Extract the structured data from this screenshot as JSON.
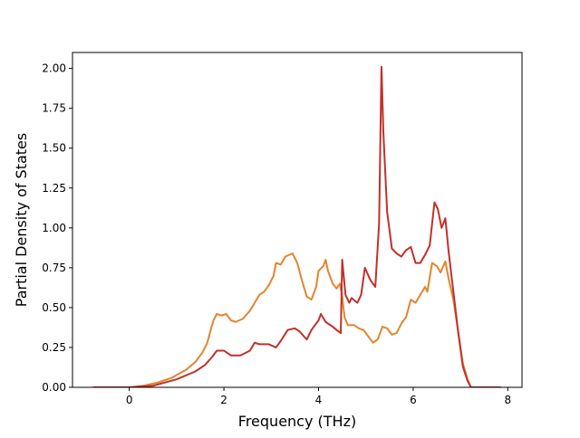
{
  "chart_data": {
    "type": "line",
    "title": "",
    "xlabel": "Frequency (THz)",
    "ylabel": "Partial Density of States",
    "xlim": [
      -1.2,
      8.3
    ],
    "ylim": [
      0.0,
      2.1
    ],
    "x_ticks": [
      0,
      2,
      4,
      6,
      8
    ],
    "x_tick_labels": [
      "0",
      "2",
      "4",
      "6",
      "8"
    ],
    "y_ticks": [
      0.0,
      0.25,
      0.5,
      0.75,
      1.0,
      1.25,
      1.5,
      1.75,
      2.0
    ],
    "y_tick_labels": [
      "0.00",
      "0.25",
      "0.50",
      "0.75",
      "1.00",
      "1.25",
      "1.50",
      "1.75",
      "2.00"
    ],
    "grid": false,
    "legend": "none",
    "series": [
      {
        "color": "#e2852f",
        "points": [
          [
            -0.75,
            0.0
          ],
          [
            0.0,
            0.0
          ],
          [
            0.3,
            0.01
          ],
          [
            0.6,
            0.03
          ],
          [
            0.9,
            0.06
          ],
          [
            1.2,
            0.11
          ],
          [
            1.4,
            0.16
          ],
          [
            1.55,
            0.22
          ],
          [
            1.65,
            0.28
          ],
          [
            1.72,
            0.36
          ],
          [
            1.78,
            0.42
          ],
          [
            1.85,
            0.46
          ],
          [
            1.95,
            0.45
          ],
          [
            2.05,
            0.46
          ],
          [
            2.15,
            0.42
          ],
          [
            2.25,
            0.41
          ],
          [
            2.4,
            0.43
          ],
          [
            2.55,
            0.48
          ],
          [
            2.65,
            0.53
          ],
          [
            2.75,
            0.58
          ],
          [
            2.85,
            0.6
          ],
          [
            2.95,
            0.64
          ],
          [
            3.05,
            0.7
          ],
          [
            3.1,
            0.78
          ],
          [
            3.2,
            0.77
          ],
          [
            3.3,
            0.82
          ],
          [
            3.45,
            0.84
          ],
          [
            3.55,
            0.78
          ],
          [
            3.65,
            0.67
          ],
          [
            3.75,
            0.57
          ],
          [
            3.85,
            0.55
          ],
          [
            3.95,
            0.63
          ],
          [
            4.0,
            0.73
          ],
          [
            4.1,
            0.76
          ],
          [
            4.15,
            0.8
          ],
          [
            4.2,
            0.73
          ],
          [
            4.3,
            0.65
          ],
          [
            4.38,
            0.62
          ],
          [
            4.45,
            0.65
          ],
          [
            4.5,
            0.57
          ],
          [
            4.55,
            0.44
          ],
          [
            4.62,
            0.39
          ],
          [
            4.75,
            0.39
          ],
          [
            4.85,
            0.37
          ],
          [
            4.95,
            0.36
          ],
          [
            5.05,
            0.32
          ],
          [
            5.15,
            0.28
          ],
          [
            5.25,
            0.3
          ],
          [
            5.35,
            0.38
          ],
          [
            5.45,
            0.37
          ],
          [
            5.55,
            0.33
          ],
          [
            5.65,
            0.34
          ],
          [
            5.75,
            0.4
          ],
          [
            5.85,
            0.44
          ],
          [
            5.95,
            0.55
          ],
          [
            6.05,
            0.53
          ],
          [
            6.15,
            0.58
          ],
          [
            6.25,
            0.63
          ],
          [
            6.3,
            0.6
          ],
          [
            6.4,
            0.78
          ],
          [
            6.5,
            0.76
          ],
          [
            6.58,
            0.72
          ],
          [
            6.68,
            0.79
          ],
          [
            6.75,
            0.68
          ],
          [
            6.85,
            0.55
          ],
          [
            6.95,
            0.35
          ],
          [
            7.05,
            0.15
          ],
          [
            7.15,
            0.05
          ],
          [
            7.22,
            0.0
          ],
          [
            7.85,
            0.0
          ]
        ]
      },
      {
        "color": "#c0312a",
        "points": [
          [
            -0.75,
            0.0
          ],
          [
            0.0,
            0.0
          ],
          [
            0.5,
            0.01
          ],
          [
            1.0,
            0.05
          ],
          [
            1.4,
            0.1
          ],
          [
            1.6,
            0.14
          ],
          [
            1.75,
            0.19
          ],
          [
            1.85,
            0.23
          ],
          [
            2.0,
            0.23
          ],
          [
            2.15,
            0.2
          ],
          [
            2.35,
            0.2
          ],
          [
            2.55,
            0.23
          ],
          [
            2.65,
            0.28
          ],
          [
            2.75,
            0.27
          ],
          [
            2.95,
            0.27
          ],
          [
            3.1,
            0.25
          ],
          [
            3.2,
            0.29
          ],
          [
            3.35,
            0.36
          ],
          [
            3.5,
            0.37
          ],
          [
            3.6,
            0.35
          ],
          [
            3.75,
            0.3
          ],
          [
            3.85,
            0.36
          ],
          [
            4.0,
            0.42
          ],
          [
            4.05,
            0.46
          ],
          [
            4.15,
            0.41
          ],
          [
            4.3,
            0.38
          ],
          [
            4.38,
            0.36
          ],
          [
            4.47,
            0.34
          ],
          [
            4.5,
            0.8
          ],
          [
            4.57,
            0.58
          ],
          [
            4.65,
            0.53
          ],
          [
            4.7,
            0.56
          ],
          [
            4.82,
            0.53
          ],
          [
            4.9,
            0.58
          ],
          [
            4.98,
            0.75
          ],
          [
            5.1,
            0.67
          ],
          [
            5.2,
            0.63
          ],
          [
            5.28,
            1.03
          ],
          [
            5.33,
            2.01
          ],
          [
            5.37,
            1.6
          ],
          [
            5.45,
            1.1
          ],
          [
            5.55,
            0.87
          ],
          [
            5.65,
            0.84
          ],
          [
            5.75,
            0.82
          ],
          [
            5.85,
            0.86
          ],
          [
            5.95,
            0.88
          ],
          [
            6.05,
            0.78
          ],
          [
            6.15,
            0.78
          ],
          [
            6.25,
            0.83
          ],
          [
            6.35,
            0.89
          ],
          [
            6.45,
            1.16
          ],
          [
            6.52,
            1.12
          ],
          [
            6.6,
            1.0
          ],
          [
            6.68,
            1.06
          ],
          [
            6.75,
            0.85
          ],
          [
            6.85,
            0.6
          ],
          [
            6.95,
            0.35
          ],
          [
            7.05,
            0.13
          ],
          [
            7.15,
            0.04
          ],
          [
            7.22,
            0.0
          ],
          [
            7.85,
            0.0
          ]
        ]
      }
    ]
  }
}
